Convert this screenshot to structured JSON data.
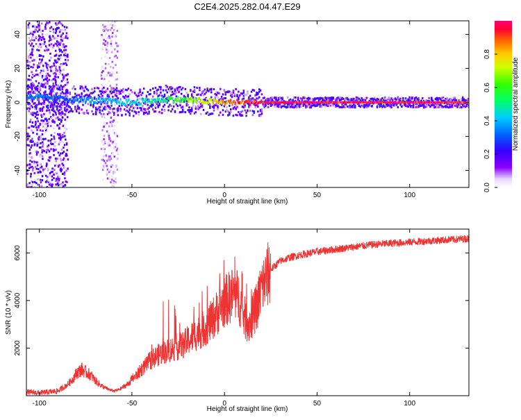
{
  "figure": {
    "title": "C2E4.2025.282.04.47.E29"
  },
  "chart_data": [
    {
      "type": "heatmap",
      "xlabel": "Height of straight line (km)",
      "ylabel": "Frequency (Hz)",
      "xlim": [
        -107,
        132
      ],
      "ylim": [
        -50,
        48
      ],
      "xticks": [
        -100,
        -50,
        0,
        50,
        100
      ],
      "xtick_labels": [
        "-100",
        "-50",
        "0",
        "50",
        "100"
      ],
      "yticks": [
        -40,
        -20,
        0,
        20,
        40
      ],
      "ytick_labels": [
        "-40",
        "-20",
        "0",
        "20",
        "40"
      ],
      "colorbar": {
        "label": "Normalized spectral amplitude",
        "range": [
          0,
          1
        ],
        "ticks": [
          0.0,
          0.2,
          0.4,
          0.6,
          0.8
        ],
        "tick_labels": [
          "0.0",
          "0.2",
          "0.4",
          "0.6",
          "0.8"
        ]
      },
      "description_points": [
        {
          "x": -100,
          "freq": 3,
          "amp": 0.35
        },
        {
          "x": -85,
          "freq": 2,
          "amp": 0.3
        },
        {
          "x": -70,
          "freq": 1,
          "amp": 0.4
        },
        {
          "x": -50,
          "freq": 0,
          "amp": 0.45
        },
        {
          "x": -30,
          "freq": 2,
          "amp": 0.55
        },
        {
          "x": -15,
          "freq": 1,
          "amp": 0.7
        },
        {
          "x": 0,
          "freq": 0,
          "amp": 0.85
        },
        {
          "x": 10,
          "freq": 0,
          "amp": 0.95
        },
        {
          "x": 20,
          "freq": 0,
          "amp": 1.0
        },
        {
          "x": 50,
          "freq": 0,
          "amp": 1.0
        },
        {
          "x": 100,
          "freq": 0,
          "amp": 1.0
        },
        {
          "x": 130,
          "freq": 0,
          "amp": 0.95
        }
      ]
    },
    {
      "type": "line",
      "xlabel": "Height of straight line (km)",
      "ylabel": "SNR (10 * v/v)",
      "xlim": [
        -107,
        132
      ],
      "ylim": [
        0,
        7000
      ],
      "xticks": [
        -100,
        -50,
        0,
        50,
        100
      ],
      "xtick_labels": [
        "-100",
        "-50",
        "0",
        "50",
        "100"
      ],
      "yticks": [
        2000,
        4000,
        6000
      ],
      "ytick_labels": [
        "2000",
        "4000",
        "6000"
      ],
      "color": "#ee3333",
      "series": [
        {
          "name": "SNR",
          "x": [
            -107,
            -100,
            -95,
            -90,
            -85,
            -82,
            -80,
            -77,
            -75,
            -72,
            -70,
            -67,
            -65,
            -62,
            -60,
            -57,
            -55,
            -52,
            -50,
            -47,
            -45,
            -42,
            -40,
            -37,
            -35,
            -32,
            -30,
            -27,
            -25,
            -22,
            -20,
            -17,
            -15,
            -12,
            -10,
            -7,
            -5,
            -2,
            0,
            3,
            5,
            8,
            10,
            13,
            15,
            18,
            20,
            25,
            30,
            35,
            40,
            50,
            60,
            70,
            80,
            90,
            100,
            110,
            120,
            132
          ],
          "y": [
            150,
            120,
            150,
            200,
            450,
            700,
            950,
            1100,
            1000,
            850,
            650,
            450,
            350,
            250,
            200,
            250,
            350,
            500,
            700,
            900,
            1100,
            1300,
            1500,
            1650,
            1750,
            1850,
            1900,
            2000,
            2050,
            2150,
            2300,
            2500,
            2600,
            2750,
            2900,
            3150,
            3400,
            3700,
            3950,
            4150,
            4300,
            4100,
            3400,
            3000,
            3300,
            3900,
            4550,
            5300,
            5650,
            5800,
            5900,
            6050,
            6150,
            6250,
            6350,
            6400,
            6450,
            6500,
            6550,
            6600
          ]
        }
      ]
    }
  ]
}
